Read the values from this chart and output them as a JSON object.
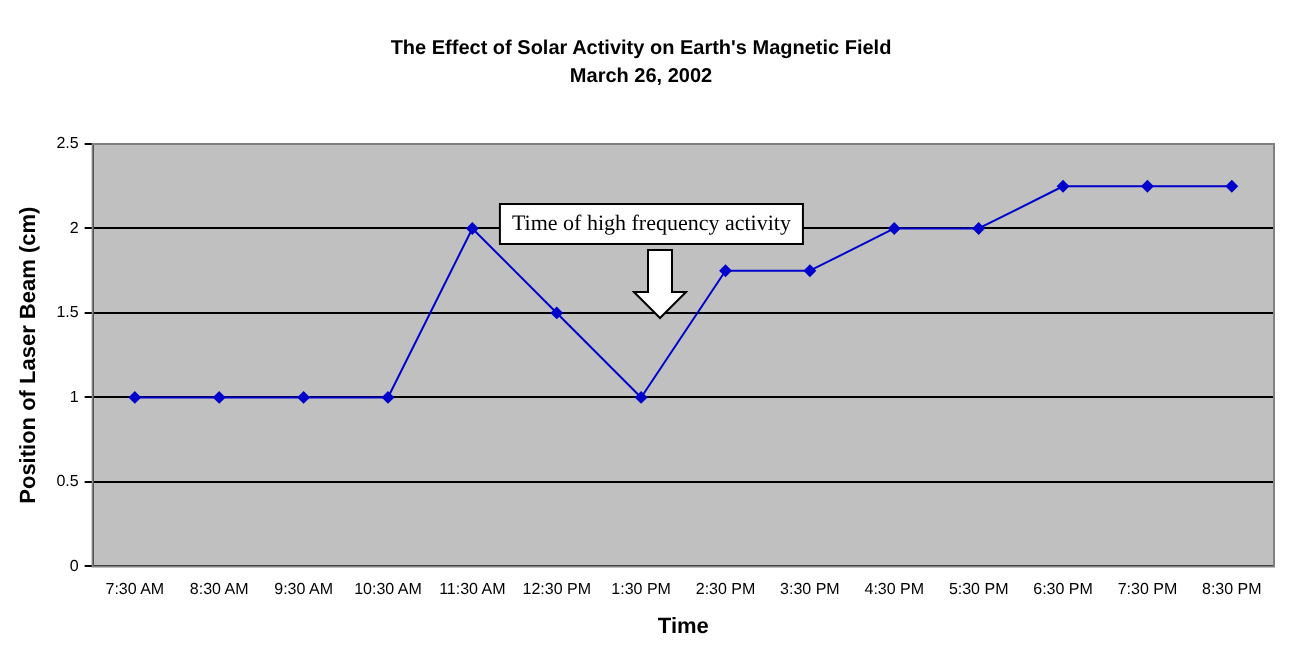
{
  "chart_data": {
    "type": "line",
    "title": "The Effect of Solar Activity on Earth's Magnetic Field",
    "subtitle": "March 26, 2002",
    "xlabel": "Time",
    "ylabel": "Position of Laser Beam (cm)",
    "categories": [
      "7:30 AM",
      "8:30 AM",
      "9:30 AM",
      "10:30 AM",
      "11:30 AM",
      "12:30 PM",
      "1:30 PM",
      "2:30 PM",
      "3:30 PM",
      "4:30 PM",
      "5:30 PM",
      "6:30 PM",
      "7:30 PM",
      "8:30 PM"
    ],
    "series": [
      {
        "color": "#0000cc",
        "values": [
          1,
          1,
          1,
          1,
          2,
          1.5,
          1,
          1.75,
          1.75,
          2,
          2,
          2.25,
          2.25,
          2.25
        ]
      }
    ],
    "ylim": [
      0,
      2.5
    ],
    "yticks": [
      0,
      0.5,
      1,
      1.5,
      2,
      2.5
    ],
    "grid": "y",
    "legend": false,
    "marker": "diamond",
    "line_style": "solid",
    "annotations": [
      "Time of high frequency activity"
    ]
  }
}
